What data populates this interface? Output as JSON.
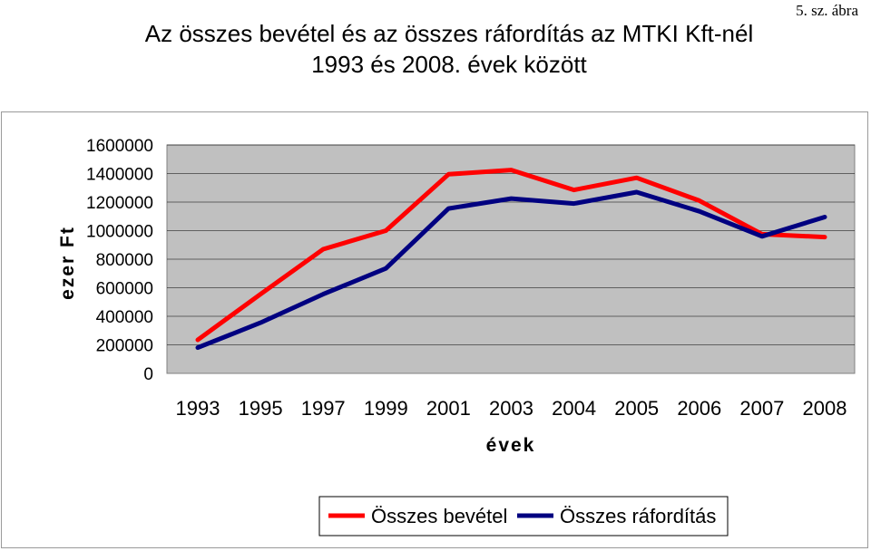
{
  "figure_label": "5. sz. ábra",
  "title_lines": [
    "Az összes bevétel és az összes ráfordítás az MTKI Kft-nél",
    "1993 és 2008. évek között"
  ],
  "colors": {
    "plot_bg": "#c0c0c0",
    "revenue": "#ff0000",
    "expense": "#000080",
    "gridline": "#000000"
  },
  "chart_data": {
    "type": "line",
    "title": "Az összes bevétel és az összes ráfordítás az MTKI Kft-nél 1993 és 2008. évek között",
    "xlabel": "évek",
    "ylabel": "ezer Ft",
    "categories": [
      "1993",
      "1995",
      "1997",
      "1999",
      "2001",
      "2003",
      "2004",
      "2005",
      "2006",
      "2007",
      "2008"
    ],
    "ylim": [
      0,
      1600000
    ],
    "yticks": [
      "0",
      "200000",
      "400000",
      "600000",
      "800000",
      "1000000",
      "1200000",
      "1400000",
      "1600000"
    ],
    "grid": true,
    "legend_position": "bottom",
    "series": [
      {
        "name": "Összes bevétel",
        "color": "#ff0000",
        "values": [
          235000,
          555000,
          870000,
          1000000,
          1395000,
          1425000,
          1285000,
          1370000,
          1210000,
          975000,
          955000
        ]
      },
      {
        "name": "Összes ráfordítás",
        "color": "#000080",
        "values": [
          180000,
          355000,
          555000,
          735000,
          1155000,
          1225000,
          1190000,
          1270000,
          1135000,
          960000,
          1095000
        ]
      }
    ]
  }
}
